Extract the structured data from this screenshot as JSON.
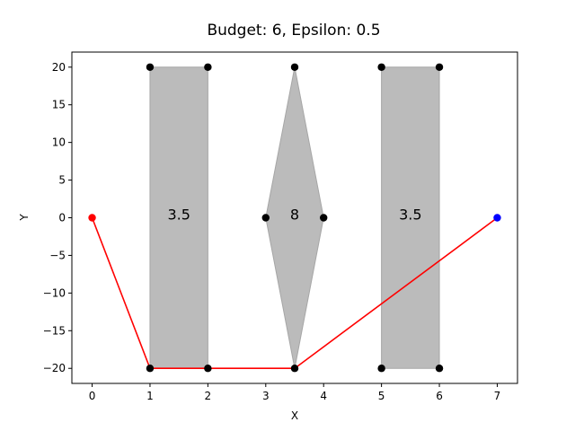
{
  "chart_data": {
    "type": "scatter",
    "title": "Budget: 6, Epsilon: 0.5",
    "xlabel": "X",
    "ylabel": "Y",
    "xlim": [
      -0.35,
      7.35
    ],
    "ylim": [
      -22,
      22
    ],
    "xticks": [
      0,
      1,
      2,
      3,
      4,
      5,
      6,
      7
    ],
    "yticks": [
      -20,
      -15,
      -10,
      -5,
      0,
      5,
      10,
      15,
      20
    ],
    "grid": false,
    "colors": {
      "obstacle_fill": "#bbbbbb",
      "obstacle_edge": "#a6a6a6",
      "path": "#ff0000",
      "start": "#ff0000",
      "goal": "#0000ff",
      "vertex": "#000000"
    },
    "obstacles": [
      {
        "name": "obstacle-rect-1",
        "vertices": [
          [
            1,
            -20
          ],
          [
            2,
            -20
          ],
          [
            2,
            20
          ],
          [
            1,
            20
          ]
        ],
        "label": "3.5",
        "label_pos": [
          1.5,
          0.5
        ]
      },
      {
        "name": "obstacle-diamond",
        "vertices": [
          [
            3.5,
            -20
          ],
          [
            4,
            0
          ],
          [
            3.5,
            20
          ],
          [
            3,
            0
          ]
        ],
        "label": "8",
        "label_pos": [
          3.5,
          0.5
        ]
      },
      {
        "name": "obstacle-rect-2",
        "vertices": [
          [
            5,
            -20
          ],
          [
            6,
            -20
          ],
          [
            6,
            20
          ],
          [
            5,
            20
          ]
        ],
        "label": "3.5",
        "label_pos": [
          5.5,
          0.5
        ]
      }
    ],
    "vertex_points": [
      [
        1,
        20
      ],
      [
        2,
        20
      ],
      [
        3.5,
        20
      ],
      [
        5,
        20
      ],
      [
        6,
        20
      ],
      [
        3,
        0
      ],
      [
        4,
        0
      ],
      [
        1,
        -20
      ],
      [
        2,
        -20
      ],
      [
        3.5,
        -20
      ],
      [
        5,
        -20
      ],
      [
        6,
        -20
      ]
    ],
    "path": [
      [
        0,
        0
      ],
      [
        1,
        -20
      ],
      [
        2,
        -20
      ],
      [
        3.5,
        -20
      ],
      [
        7,
        0
      ]
    ],
    "start": [
      0,
      0
    ],
    "goal": [
      7,
      0
    ]
  }
}
